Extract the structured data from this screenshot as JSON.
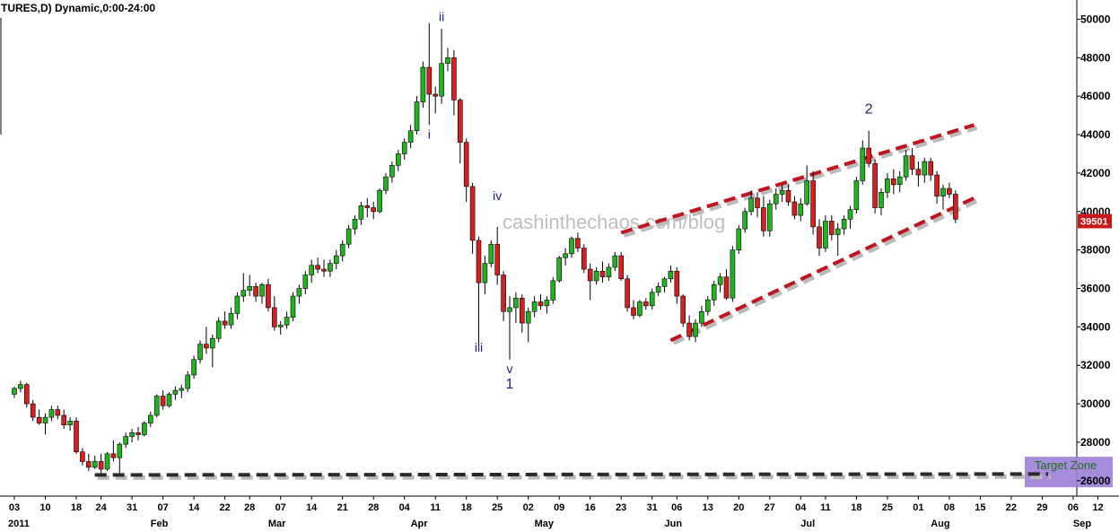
{
  "chart_data": {
    "type": "candlestick",
    "title": "TURES,D) Dynamic,0:00-24:00",
    "watermark": "cashinthechaos.com/blog",
    "ylim": [
      25200,
      51000
    ],
    "yticks": [
      {
        "label": "26000",
        "value": 26000
      },
      {
        "label": "28000",
        "value": 28000
      },
      {
        "label": "30000",
        "value": 30000
      },
      {
        "label": "32000",
        "value": 32000
      },
      {
        "label": "34000",
        "value": 34000
      },
      {
        "label": "36000",
        "value": 36000
      },
      {
        "label": "38000",
        "value": 38000
      },
      {
        "label": "40000",
        "value": 40000
      },
      {
        "label": "42000",
        "value": 42000
      },
      {
        "label": "44000",
        "value": 44000
      },
      {
        "label": "46000",
        "value": 46000
      },
      {
        "label": "48000",
        "value": 48000
      },
      {
        "label": "50000",
        "value": 50000
      }
    ],
    "xticks": [
      {
        "label": "03",
        "index": 0
      },
      {
        "label": "10",
        "index": 5
      },
      {
        "label": "18",
        "index": 10
      },
      {
        "label": "24",
        "index": 14
      },
      {
        "label": "31",
        "index": 19
      },
      {
        "label": "07",
        "index": 24
      },
      {
        "label": "14",
        "index": 29
      },
      {
        "label": "22",
        "index": 34
      },
      {
        "label": "28",
        "index": 38
      },
      {
        "label": "07",
        "index": 43
      },
      {
        "label": "14",
        "index": 48
      },
      {
        "label": "21",
        "index": 53
      },
      {
        "label": "28",
        "index": 58
      },
      {
        "label": "04",
        "index": 63
      },
      {
        "label": "11",
        "index": 68
      },
      {
        "label": "18",
        "index": 73
      },
      {
        "label": "25",
        "index": 78
      },
      {
        "label": "02",
        "index": 83
      },
      {
        "label": "09",
        "index": 88
      },
      {
        "label": "16",
        "index": 93
      },
      {
        "label": "23",
        "index": 98
      },
      {
        "label": "31",
        "index": 103
      },
      {
        "label": "06",
        "index": 107
      },
      {
        "label": "13",
        "index": 112
      },
      {
        "label": "20",
        "index": 117
      },
      {
        "label": "27",
        "index": 122
      },
      {
        "label": "04",
        "index": 127
      },
      {
        "label": "11",
        "index": 131
      },
      {
        "label": "18",
        "index": 136
      },
      {
        "label": "25",
        "index": 141
      },
      {
        "label": "01",
        "index": 146
      },
      {
        "label": "08",
        "index": 151
      },
      {
        "label": "15",
        "index": 156
      },
      {
        "label": "22",
        "index": 161
      },
      {
        "label": "29",
        "index": 166
      },
      {
        "label": "06",
        "index": 171
      },
      {
        "label": "12",
        "index": 175
      }
    ],
    "months": [
      {
        "label": "2011",
        "index": 0
      },
      {
        "label": "Feb",
        "index": 22
      },
      {
        "label": "Mar",
        "index": 41
      },
      {
        "label": "Apr",
        "index": 64
      },
      {
        "label": "May",
        "index": 84
      },
      {
        "label": "Jun",
        "index": 105
      },
      {
        "label": "Jul",
        "index": 127
      },
      {
        "label": "Aug",
        "index": 148
      },
      {
        "label": "Sep",
        "index": 171
      }
    ],
    "last_price": "39501",
    "last_price_value": 39501,
    "candles": [
      [
        0,
        30500,
        30900,
        30300,
        30800
      ],
      [
        1,
        30800,
        31200,
        30600,
        31000
      ],
      [
        2,
        31000,
        31100,
        29800,
        30000
      ],
      [
        3,
        30000,
        30200,
        29100,
        29300
      ],
      [
        4,
        29300,
        29700,
        28900,
        29000
      ],
      [
        5,
        29000,
        29500,
        28400,
        29300
      ],
      [
        6,
        29300,
        29900,
        29100,
        29700
      ],
      [
        7,
        29700,
        29900,
        29200,
        29400
      ],
      [
        8,
        29400,
        29700,
        28700,
        28900
      ],
      [
        9,
        28900,
        29300,
        28600,
        29100
      ],
      [
        10,
        29100,
        29300,
        27400,
        27500
      ],
      [
        11,
        27500,
        27700,
        26800,
        27000
      ],
      [
        12,
        27000,
        27400,
        26500,
        26700
      ],
      [
        13,
        26700,
        27300,
        26600,
        27000
      ],
      [
        14,
        27000,
        27400,
        26400,
        26600
      ],
      [
        15,
        26600,
        27500,
        26500,
        27400
      ],
      [
        16,
        27400,
        28100,
        27000,
        27200
      ],
      [
        17,
        27200,
        28000,
        26400,
        27900
      ],
      [
        18,
        27900,
        28500,
        27700,
        28300
      ],
      [
        19,
        28300,
        28700,
        28000,
        28500
      ],
      [
        20,
        28500,
        28800,
        28100,
        28400
      ],
      [
        21,
        28400,
        29100,
        28300,
        29000
      ],
      [
        22,
        29000,
        29600,
        28800,
        29400
      ],
      [
        23,
        29400,
        30500,
        29300,
        30400
      ],
      [
        24,
        30400,
        30700,
        29700,
        29900
      ],
      [
        25,
        29900,
        30600,
        29800,
        30500
      ],
      [
        26,
        30500,
        30900,
        30200,
        30700
      ],
      [
        27,
        30700,
        31000,
        30300,
        30800
      ],
      [
        28,
        30800,
        31700,
        30600,
        31500
      ],
      [
        29,
        31500,
        32500,
        31300,
        32300
      ],
      [
        30,
        32300,
        33300,
        32100,
        33100
      ],
      [
        31,
        33100,
        34000,
        32600,
        32900
      ],
      [
        32,
        32900,
        33600,
        31900,
        33400
      ],
      [
        33,
        33400,
        34500,
        33200,
        34300
      ],
      [
        34,
        34300,
        34800,
        33900,
        34100
      ],
      [
        35,
        34100,
        35000,
        33900,
        34700
      ],
      [
        36,
        34700,
        35800,
        34400,
        35600
      ],
      [
        37,
        35600,
        36800,
        35300,
        35900
      ],
      [
        38,
        35900,
        36700,
        35600,
        36100
      ],
      [
        39,
        36100,
        36300,
        35300,
        35600
      ],
      [
        40,
        35600,
        36300,
        35200,
        36200
      ],
      [
        41,
        36200,
        36500,
        34800,
        35000
      ],
      [
        42,
        35000,
        35600,
        33800,
        34000
      ],
      [
        43,
        34000,
        34300,
        33600,
        34100
      ],
      [
        44,
        34100,
        34800,
        33900,
        34500
      ],
      [
        45,
        34500,
        35800,
        34300,
        35600
      ],
      [
        46,
        35600,
        36200,
        35200,
        36000
      ],
      [
        47,
        36000,
        36900,
        35700,
        36700
      ],
      [
        48,
        36700,
        37500,
        36300,
        37200
      ],
      [
        49,
        37200,
        37600,
        36800,
        37000
      ],
      [
        50,
        37000,
        37500,
        36600,
        36900
      ],
      [
        51,
        36900,
        37500,
        36600,
        37300
      ],
      [
        52,
        37300,
        38000,
        37000,
        37700
      ],
      [
        53,
        37700,
        38500,
        37400,
        38300
      ],
      [
        54,
        38300,
        39300,
        38100,
        39100
      ],
      [
        55,
        39100,
        39800,
        38800,
        39600
      ],
      [
        56,
        39600,
        40500,
        39300,
        40300
      ],
      [
        57,
        40300,
        40700,
        39700,
        40200
      ],
      [
        58,
        40200,
        40500,
        39600,
        40000
      ],
      [
        59,
        40000,
        41200,
        39900,
        41100
      ],
      [
        60,
        41100,
        42000,
        40900,
        41800
      ],
      [
        61,
        41800,
        42600,
        41500,
        42400
      ],
      [
        62,
        42400,
        43200,
        42100,
        43000
      ],
      [
        63,
        43000,
        43800,
        42700,
        43600
      ],
      [
        64,
        43600,
        44500,
        43300,
        44200
      ],
      [
        65,
        44200,
        46000,
        44000,
        45700
      ],
      [
        66,
        45700,
        47800,
        45400,
        47500
      ],
      [
        67,
        47500,
        49800,
        44500,
        46100
      ],
      [
        68,
        46100,
        46500,
        45100,
        46000
      ],
      [
        69,
        46000,
        49500,
        45600,
        47700
      ],
      [
        70,
        47700,
        48500,
        47300,
        48000
      ],
      [
        71,
        48000,
        48400,
        45000,
        45800
      ],
      [
        72,
        45800,
        45900,
        42500,
        43600
      ],
      [
        73,
        43600,
        43800,
        40500,
        41300
      ],
      [
        74,
        41300,
        41500,
        37800,
        38500
      ],
      [
        75,
        38500,
        38700,
        33000,
        36300
      ],
      [
        76,
        36300,
        37700,
        35700,
        37300
      ],
      [
        77,
        37300,
        38500,
        37100,
        38300
      ],
      [
        78,
        38300,
        39200,
        36200,
        36700
      ],
      [
        79,
        36700,
        36900,
        34300,
        34800
      ],
      [
        80,
        34800,
        35600,
        32300,
        35000
      ],
      [
        81,
        35000,
        35800,
        34200,
        35500
      ],
      [
        82,
        35500,
        35700,
        33700,
        34200
      ],
      [
        83,
        34200,
        35000,
        33200,
        34800
      ],
      [
        84,
        34800,
        35600,
        34500,
        35300
      ],
      [
        85,
        35300,
        35700,
        34900,
        35100
      ],
      [
        86,
        35100,
        35600,
        34700,
        35400
      ],
      [
        87,
        35400,
        36600,
        35200,
        36400
      ],
      [
        88,
        36400,
        37700,
        36300,
        37600
      ],
      [
        89,
        37600,
        38100,
        37200,
        37800
      ],
      [
        90,
        37800,
        38700,
        37600,
        38600
      ],
      [
        91,
        38600,
        38900,
        37900,
        38100
      ],
      [
        92,
        38100,
        38300,
        36800,
        37000
      ],
      [
        93,
        37000,
        37300,
        35400,
        36400
      ],
      [
        94,
        36400,
        37100,
        36200,
        36900
      ],
      [
        95,
        36900,
        37400,
        36300,
        36600
      ],
      [
        96,
        36600,
        37300,
        36400,
        37100
      ],
      [
        97,
        37100,
        37900,
        36900,
        37700
      ],
      [
        98,
        37700,
        37900,
        36400,
        36500
      ],
      [
        99,
        36500,
        36700,
        34800,
        35000
      ],
      [
        100,
        35000,
        35400,
        34400,
        34600
      ],
      [
        101,
        34600,
        35400,
        34500,
        35300
      ],
      [
        102,
        35300,
        35500,
        34900,
        35100
      ],
      [
        103,
        35100,
        36000,
        34900,
        35800
      ],
      [
        104,
        35800,
        36300,
        35600,
        36100
      ],
      [
        105,
        36100,
        36600,
        35800,
        36500
      ],
      [
        106,
        36500,
        37200,
        36300,
        36900
      ],
      [
        107,
        36900,
        37100,
        35200,
        35600
      ],
      [
        108,
        35600,
        35700,
        34000,
        34200
      ],
      [
        109,
        34200,
        34600,
        33300,
        33500
      ],
      [
        110,
        33500,
        34400,
        33200,
        34200
      ],
      [
        111,
        34200,
        35100,
        34000,
        34800
      ],
      [
        112,
        34800,
        35600,
        34600,
        35400
      ],
      [
        113,
        35400,
        36400,
        35100,
        36200
      ],
      [
        114,
        36200,
        36800,
        35800,
        36600
      ],
      [
        115,
        36600,
        37000,
        35400,
        35500
      ],
      [
        116,
        35500,
        38200,
        35300,
        38000
      ],
      [
        117,
        38000,
        39300,
        37800,
        39100
      ],
      [
        118,
        39100,
        40200,
        38900,
        40000
      ],
      [
        119,
        40000,
        41100,
        39800,
        40700
      ],
      [
        120,
        40700,
        41000,
        39700,
        40200
      ],
      [
        121,
        40200,
        40800,
        38700,
        39000
      ],
      [
        122,
        39000,
        40600,
        38700,
        40400
      ],
      [
        123,
        40400,
        41200,
        40100,
        40900
      ],
      [
        124,
        40900,
        41400,
        40500,
        41100
      ],
      [
        125,
        41100,
        41400,
        40300,
        40500
      ],
      [
        126,
        40500,
        40800,
        39600,
        39800
      ],
      [
        127,
        39800,
        40700,
        39500,
        40400
      ],
      [
        128,
        40400,
        42400,
        40300,
        41600
      ],
      [
        129,
        41600,
        42100,
        38800,
        39200
      ],
      [
        130,
        39200,
        39600,
        37700,
        38100
      ],
      [
        131,
        38100,
        39800,
        37900,
        39500
      ],
      [
        132,
        39500,
        39800,
        38500,
        38800
      ],
      [
        133,
        38800,
        39400,
        37700,
        39100
      ],
      [
        134,
        39100,
        39800,
        38800,
        39600
      ],
      [
        135,
        39600,
        40300,
        39100,
        40100
      ],
      [
        136,
        40100,
        41800,
        39900,
        41600
      ],
      [
        137,
        41600,
        43700,
        41400,
        43300
      ],
      [
        138,
        43300,
        44200,
        42300,
        42500
      ],
      [
        139,
        42500,
        42700,
        39900,
        40200
      ],
      [
        140,
        40200,
        41200,
        39800,
        41000
      ],
      [
        141,
        41000,
        42000,
        40700,
        41700
      ],
      [
        142,
        41700,
        42200,
        40900,
        41400
      ],
      [
        143,
        41400,
        42100,
        41000,
        41800
      ],
      [
        144,
        41800,
        43200,
        41600,
        42900
      ],
      [
        145,
        42900,
        43300,
        41900,
        42200
      ],
      [
        146,
        42200,
        42600,
        41300,
        41900
      ],
      [
        147,
        41900,
        42800,
        41500,
        42600
      ],
      [
        148,
        42600,
        42800,
        41600,
        41900
      ],
      [
        149,
        41900,
        42100,
        40400,
        40800
      ],
      [
        150,
        40800,
        41400,
        40100,
        41200
      ],
      [
        151,
        41200,
        41500,
        40700,
        40900
      ],
      [
        152,
        40900,
        41100,
        39400,
        39600
      ]
    ],
    "annotations": [
      {
        "label": "ii",
        "index": 69,
        "price": 49900,
        "size": "small"
      },
      {
        "label": "i",
        "index": 67,
        "price": 43800,
        "size": "small"
      },
      {
        "label": "iv",
        "index": 78,
        "price": 40600,
        "size": "small"
      },
      {
        "label": "iii",
        "index": 75,
        "price": 32700,
        "size": "small"
      },
      {
        "label": "v",
        "index": 80,
        "price": 31600,
        "size": "small"
      },
      {
        "label": "1",
        "index": 80,
        "price": 30800,
        "size": "big"
      },
      {
        "label": "2",
        "index": 138,
        "price": 45100,
        "size": "big"
      }
    ],
    "trendlines": [
      {
        "from": [
          98,
          38900
        ],
        "to": [
          155,
          44500
        ],
        "color": "#c0141e"
      },
      {
        "from": [
          106,
          33300
        ],
        "to": [
          155,
          40700
        ],
        "color": "#c0141e"
      },
      {
        "from": [
          13,
          26300
        ],
        "to": [
          175,
          26350
        ],
        "color": "#2a2a2a"
      }
    ],
    "target_zone": {
      "label": "Target Zone",
      "price_low": 25800,
      "price_high": 27200,
      "color": "#9c7fd6"
    },
    "colors": {
      "up": "#22b322",
      "down": "#d42020",
      "price_label_bg": "#c91818"
    }
  }
}
